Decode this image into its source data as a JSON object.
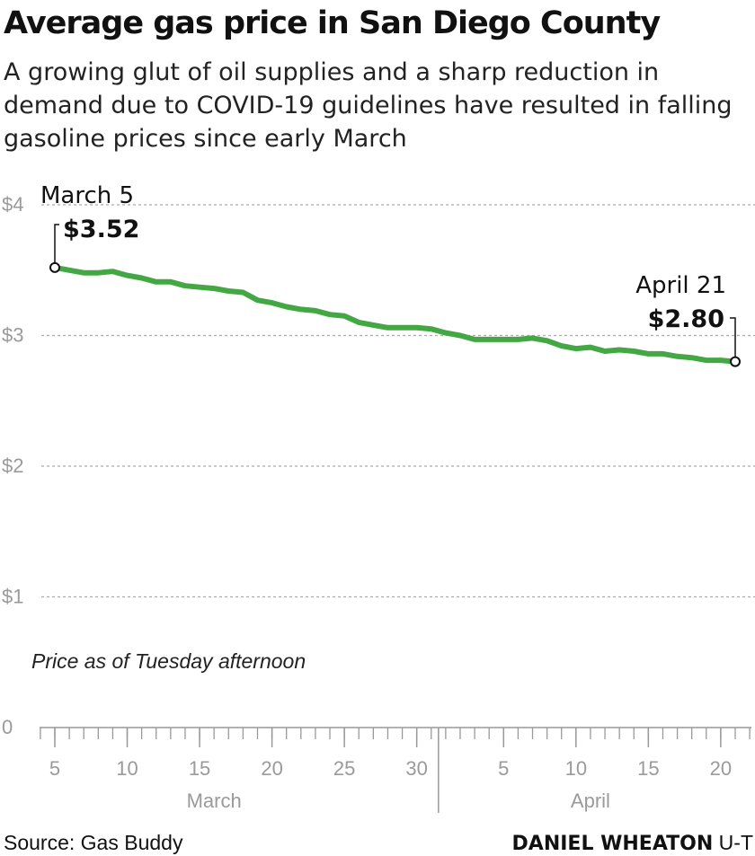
{
  "header": {
    "title": "Average gas price in San Diego County",
    "subtitle": "A growing glut of oil supplies and a sharp reduction in demand due to COVID-19 guidelines have resulted in falling gasoline prices since early March"
  },
  "chart_data": {
    "type": "line",
    "title": "Average gas price in San Diego County",
    "xlabel": "",
    "ylabel": "",
    "ylim": [
      0,
      4
    ],
    "grid": true,
    "y_ticks": [
      {
        "value": 0,
        "label": "0"
      },
      {
        "value": 1,
        "label": "$1"
      },
      {
        "value": 2,
        "label": "$2"
      },
      {
        "value": 3,
        "label": "$3"
      },
      {
        "value": 4,
        "label": "$4"
      }
    ],
    "x_range": [
      "2020-03-05",
      "2020-04-21"
    ],
    "x_ticks": [
      {
        "date": "2020-03-05",
        "label": "5"
      },
      {
        "date": "2020-03-10",
        "label": "10"
      },
      {
        "date": "2020-03-15",
        "label": "15"
      },
      {
        "date": "2020-03-20",
        "label": "20"
      },
      {
        "date": "2020-03-25",
        "label": "25"
      },
      {
        "date": "2020-03-30",
        "label": "30"
      },
      {
        "date": "2020-04-05",
        "label": "5"
      },
      {
        "date": "2020-04-10",
        "label": "10"
      },
      {
        "date": "2020-04-15",
        "label": "15"
      },
      {
        "date": "2020-04-20",
        "label": "20"
      }
    ],
    "month_labels": [
      {
        "label": "March",
        "center_date": "2020-03-16"
      },
      {
        "label": "April",
        "center_date": "2020-04-11"
      }
    ],
    "month_divider_date": "2020-04-01",
    "note": "Price as of Tuesday afternoon",
    "color": "#43a843",
    "series": [
      {
        "x": [
          "2020-03-05",
          "2020-03-06",
          "2020-03-07",
          "2020-03-08",
          "2020-03-09",
          "2020-03-10",
          "2020-03-11",
          "2020-03-12",
          "2020-03-13",
          "2020-03-14",
          "2020-03-15",
          "2020-03-16",
          "2020-03-17",
          "2020-03-18",
          "2020-03-19",
          "2020-03-20",
          "2020-03-21",
          "2020-03-22",
          "2020-03-23",
          "2020-03-24",
          "2020-03-25",
          "2020-03-26",
          "2020-03-27",
          "2020-03-28",
          "2020-03-29",
          "2020-03-30",
          "2020-03-31",
          "2020-04-01",
          "2020-04-02",
          "2020-04-03",
          "2020-04-04",
          "2020-04-05",
          "2020-04-06",
          "2020-04-07",
          "2020-04-08",
          "2020-04-09",
          "2020-04-10",
          "2020-04-11",
          "2020-04-12",
          "2020-04-13",
          "2020-04-14",
          "2020-04-15",
          "2020-04-16",
          "2020-04-17",
          "2020-04-18",
          "2020-04-19",
          "2020-04-20",
          "2020-04-21"
        ],
        "y": [
          3.52,
          3.5,
          3.48,
          3.48,
          3.49,
          3.46,
          3.44,
          3.41,
          3.41,
          3.38,
          3.37,
          3.36,
          3.34,
          3.33,
          3.27,
          3.25,
          3.22,
          3.2,
          3.19,
          3.16,
          3.15,
          3.1,
          3.08,
          3.06,
          3.06,
          3.06,
          3.05,
          3.02,
          3.0,
          2.97,
          2.97,
          2.97,
          2.97,
          2.98,
          2.96,
          2.92,
          2.9,
          2.91,
          2.88,
          2.89,
          2.88,
          2.86,
          2.86,
          2.84,
          2.83,
          2.81,
          2.81,
          2.8
        ]
      }
    ],
    "annotations": [
      {
        "date": "2020-03-05",
        "label": "March 5",
        "value_label": "$3.52",
        "value": 3.52
      },
      {
        "date": "2020-04-21",
        "label": "April 21",
        "value_label": "$2.80",
        "value": 2.8
      }
    ]
  },
  "footer": {
    "source": "Source: Gas Buddy",
    "credit_name": "DANIEL WHEATON",
    "credit_org": "U-T"
  }
}
